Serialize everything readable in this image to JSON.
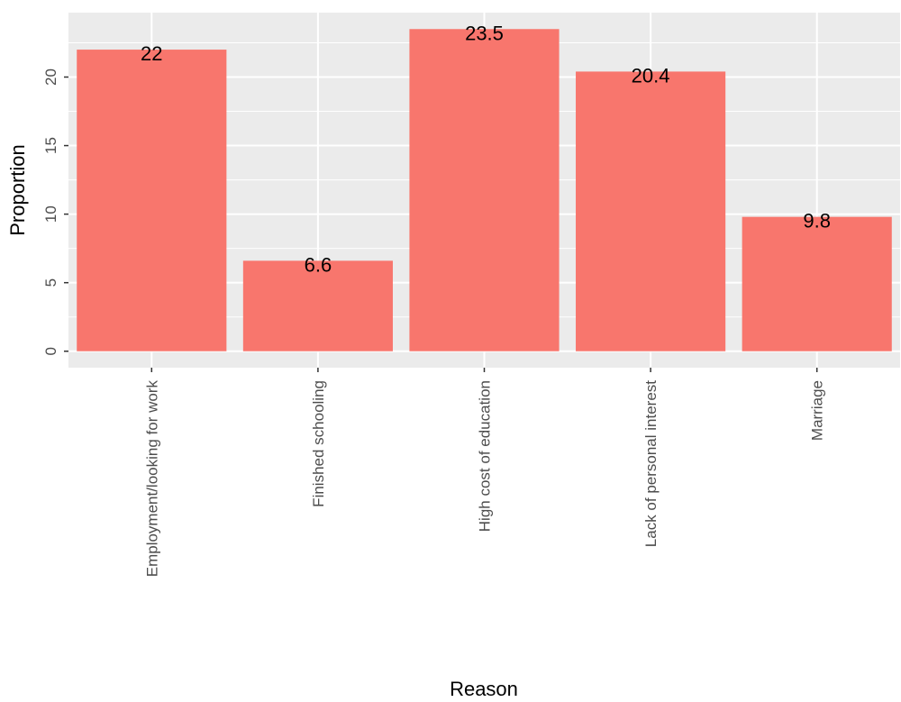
{
  "chart_data": {
    "type": "bar",
    "categories": [
      "Employment/looking for work",
      "Finished schooling",
      "High cost of education",
      "Lack of personal interest",
      "Marriage"
    ],
    "values": [
      22,
      6.6,
      23.5,
      20.4,
      9.8
    ],
    "data_labels": [
      "22",
      "6.6",
      "23.5",
      "20.4",
      "9.8"
    ],
    "xlabel": "Reason",
    "ylabel": "Proportion",
    "ylim": [
      -1.2,
      24.7
    ],
    "yticks": [
      0,
      5,
      10,
      15,
      20
    ],
    "ytick_labels": [
      "0",
      "5",
      "10",
      "15",
      "20"
    ],
    "grid": true,
    "legend": "none",
    "colors": {
      "bar": "#F8766D",
      "panel": "#EBEBEB",
      "grid_major": "#FFFFFF",
      "tick": "#333333"
    }
  }
}
